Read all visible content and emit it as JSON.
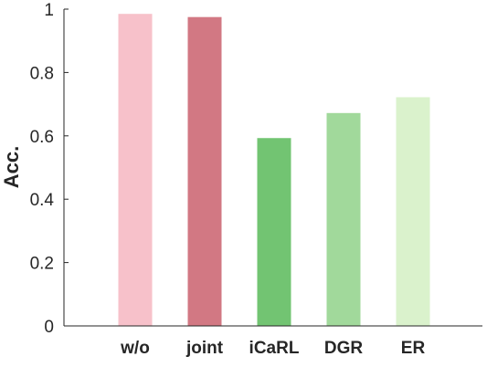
{
  "chart_data": {
    "type": "bar",
    "categories": [
      "w/o",
      "joint",
      "iCaRL",
      "DGR",
      "ER"
    ],
    "values": [
      0.985,
      0.975,
      0.593,
      0.672,
      0.722
    ],
    "colors": [
      "#f7c1ca",
      "#d27883",
      "#72c472",
      "#a1d99b",
      "#daf2cc"
    ],
    "ylabel": "Acc.",
    "xlabel": "",
    "ylim": [
      0,
      1
    ],
    "yticks": [
      0,
      0.2,
      0.4,
      0.6,
      0.8,
      1
    ],
    "ytick_labels": [
      "0",
      "0.2",
      "0.4",
      "0.6",
      "0.8",
      "1"
    ],
    "grid": false,
    "legend": "none"
  }
}
